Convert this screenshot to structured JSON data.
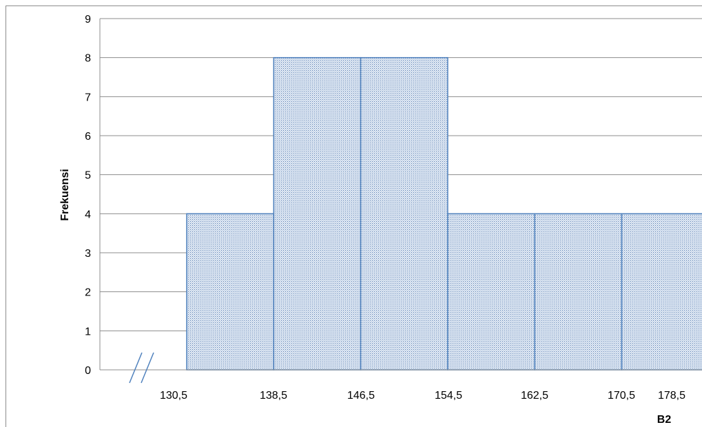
{
  "chart_data": {
    "type": "bar",
    "bin_edges": [
      "130,5",
      "138,5",
      "146,5",
      "154,5",
      "162,5",
      "170,5",
      "178,5"
    ],
    "bars": [
      {
        "from": 130.5,
        "to": 138.5,
        "value": 4
      },
      {
        "from": 138.5,
        "to": 146.5,
        "value": 8
      },
      {
        "from": 146.5,
        "to": 154.5,
        "value": 8
      },
      {
        "from": 154.5,
        "to": 162.5,
        "value": 4
      },
      {
        "from": 162.5,
        "to": 170.5,
        "value": 4
      },
      {
        "from": 170.5,
        "to": 178.5,
        "value": 4
      }
    ],
    "ylim": [
      0,
      9
    ],
    "yticks": [
      "0",
      "1",
      "2",
      "3",
      "4",
      "5",
      "6",
      "7",
      "8",
      "9"
    ],
    "ylabel": "Frekuensi",
    "xlabel": "B2",
    "grid": true,
    "axis_break": true,
    "bar_color": "#d6e2f0",
    "bar_border_color": "#4f81bd"
  }
}
